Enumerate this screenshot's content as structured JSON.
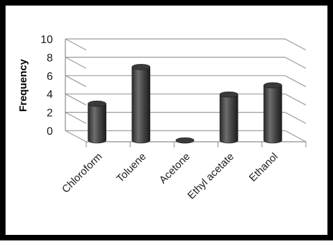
{
  "chart_data": {
    "type": "bar",
    "style": "3d-cylinder",
    "title": "",
    "xlabel": "",
    "ylabel": "Frequency",
    "categories": [
      "Chloroform",
      "Toluene",
      "Acetone",
      "Ethyl acetate",
      "Ethanol"
    ],
    "values": [
      4,
      8,
      0,
      5,
      6
    ],
    "ylim": [
      0,
      10
    ],
    "yticks": [
      "0",
      "2",
      "4",
      "6",
      "8",
      "10"
    ],
    "grid": true,
    "legend": "none",
    "bar_color": "#3a3a3a"
  }
}
